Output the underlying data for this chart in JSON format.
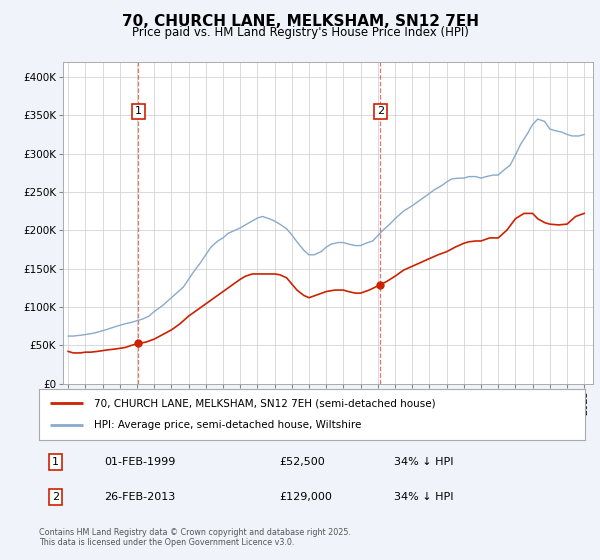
{
  "title": "70, CHURCH LANE, MELKSHAM, SN12 7EH",
  "subtitle": "Price paid vs. HM Land Registry's House Price Index (HPI)",
  "legend_line1": "70, CHURCH LANE, MELKSHAM, SN12 7EH (semi-detached house)",
  "legend_line2": "HPI: Average price, semi-detached house, Wiltshire",
  "footnote": "Contains HM Land Registry data © Crown copyright and database right 2025.\nThis data is licensed under the Open Government Licence v3.0.",
  "marker1_date": "01-FEB-1999",
  "marker1_price": "£52,500",
  "marker1_hpi": "34% ↓ HPI",
  "marker1_year": 1999.08,
  "marker1_value": 52500,
  "marker2_date": "26-FEB-2013",
  "marker2_price": "£129,000",
  "marker2_hpi": "34% ↓ HPI",
  "marker2_year": 2013.15,
  "marker2_value": 129000,
  "red_color": "#cc2200",
  "blue_color": "#88aacc",
  "background_color": "#f0f4fa",
  "plot_bg": "#ffffff",
  "grid_color": "#cccccc",
  "ylim": [
    0,
    420000
  ],
  "yticks": [
    0,
    50000,
    100000,
    150000,
    200000,
    250000,
    300000,
    350000,
    400000
  ],
  "xlim_start": 1994.7,
  "xlim_end": 2025.5,
  "red_x": [
    1995.0,
    1995.3,
    1995.7,
    1996.0,
    1996.3,
    1996.7,
    1997.0,
    1997.3,
    1997.7,
    1998.0,
    1998.3,
    1998.7,
    1999.08,
    1999.5,
    2000.0,
    2000.5,
    2001.0,
    2001.5,
    2002.0,
    2002.5,
    2003.0,
    2003.5,
    2004.0,
    2004.5,
    2005.0,
    2005.3,
    2005.7,
    2006.0,
    2006.5,
    2007.0,
    2007.3,
    2007.7,
    2008.0,
    2008.3,
    2008.7,
    2009.0,
    2009.5,
    2010.0,
    2010.5,
    2011.0,
    2011.3,
    2011.7,
    2012.0,
    2012.5,
    2013.15,
    2013.5,
    2014.0,
    2014.5,
    2015.0,
    2015.5,
    2016.0,
    2016.5,
    2017.0,
    2017.5,
    2018.0,
    2018.3,
    2018.7,
    2019.0,
    2019.5,
    2020.0,
    2020.5,
    2021.0,
    2021.5,
    2022.0,
    2022.3,
    2022.7,
    2023.0,
    2023.5,
    2024.0,
    2024.5,
    2025.0
  ],
  "red_y": [
    42000,
    40000,
    40000,
    41000,
    41000,
    42000,
    43000,
    44000,
    45000,
    46000,
    47000,
    50000,
    52500,
    54000,
    58000,
    64000,
    70000,
    78000,
    88000,
    96000,
    104000,
    112000,
    120000,
    128000,
    136000,
    140000,
    143000,
    143000,
    143000,
    143000,
    142000,
    138000,
    130000,
    122000,
    115000,
    112000,
    116000,
    120000,
    122000,
    122000,
    120000,
    118000,
    118000,
    122000,
    129000,
    133000,
    140000,
    148000,
    153000,
    158000,
    163000,
    168000,
    172000,
    178000,
    183000,
    185000,
    186000,
    186000,
    190000,
    190000,
    200000,
    215000,
    222000,
    222000,
    215000,
    210000,
    208000,
    207000,
    208000,
    218000,
    222000
  ],
  "blue_x": [
    1995.0,
    1995.3,
    1995.7,
    1996.0,
    1996.3,
    1996.7,
    1997.0,
    1997.3,
    1997.7,
    1998.0,
    1998.3,
    1998.7,
    1999.0,
    1999.3,
    1999.7,
    2000.0,
    2000.5,
    2001.0,
    2001.3,
    2001.7,
    2002.0,
    2002.3,
    2002.7,
    2003.0,
    2003.3,
    2003.7,
    2004.0,
    2004.3,
    2004.7,
    2005.0,
    2005.3,
    2005.7,
    2006.0,
    2006.3,
    2006.7,
    2007.0,
    2007.3,
    2007.7,
    2008.0,
    2008.3,
    2008.7,
    2009.0,
    2009.3,
    2009.7,
    2010.0,
    2010.3,
    2010.7,
    2011.0,
    2011.3,
    2011.7,
    2012.0,
    2012.3,
    2012.7,
    2013.0,
    2013.3,
    2013.7,
    2014.0,
    2014.5,
    2015.0,
    2015.5,
    2016.0,
    2016.3,
    2016.7,
    2017.0,
    2017.3,
    2017.7,
    2018.0,
    2018.3,
    2018.7,
    2019.0,
    2019.3,
    2019.7,
    2020.0,
    2020.3,
    2020.7,
    2021.0,
    2021.3,
    2021.7,
    2022.0,
    2022.3,
    2022.7,
    2023.0,
    2023.3,
    2023.7,
    2024.0,
    2024.3,
    2024.7,
    2025.0
  ],
  "blue_y": [
    62000,
    62000,
    63000,
    64000,
    65000,
    67000,
    69000,
    71000,
    74000,
    76000,
    78000,
    80000,
    82000,
    84000,
    88000,
    94000,
    102000,
    112000,
    118000,
    126000,
    136000,
    146000,
    158000,
    168000,
    178000,
    186000,
    190000,
    196000,
    200000,
    203000,
    207000,
    212000,
    216000,
    218000,
    215000,
    212000,
    208000,
    202000,
    194000,
    185000,
    174000,
    168000,
    168000,
    172000,
    178000,
    182000,
    184000,
    184000,
    182000,
    180000,
    180000,
    183000,
    186000,
    193000,
    200000,
    208000,
    215000,
    225000,
    232000,
    240000,
    248000,
    253000,
    258000,
    263000,
    267000,
    268000,
    268000,
    270000,
    270000,
    268000,
    270000,
    272000,
    272000,
    278000,
    285000,
    298000,
    312000,
    326000,
    338000,
    345000,
    342000,
    332000,
    330000,
    328000,
    325000,
    323000,
    323000,
    325000
  ]
}
